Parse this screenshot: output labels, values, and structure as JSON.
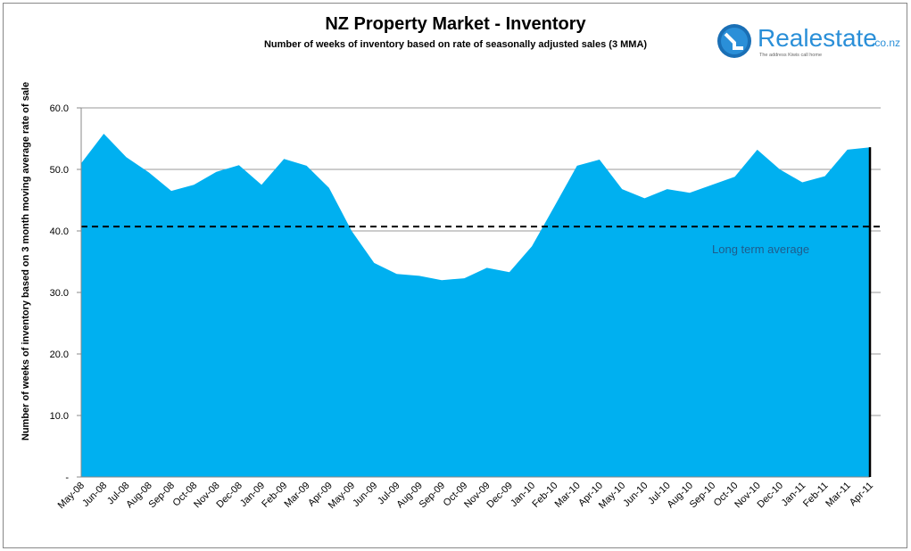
{
  "chart_data": {
    "type": "area",
    "title": "NZ Property Market - Inventory",
    "subtitle": "Number of weeks of inventory based on rate of seasonally  adjusted sales (3 MMA)",
    "ylabel": "Number of weeks of inventory based on 3 month moving average rate of sale",
    "xlabel": "",
    "ylim": [
      0,
      60
    ],
    "yticks": [
      "-",
      "10.0",
      "20.0",
      "30.0",
      "40.0",
      "50.0",
      "60.0"
    ],
    "grid": true,
    "categories": [
      "May-08",
      "Jun-08",
      "Jul-08",
      "Aug-08",
      "Sep-08",
      "Oct-08",
      "Nov-08",
      "Dec-08",
      "Jan-09",
      "Feb-09",
      "Mar-09",
      "Apr-09",
      "May-09",
      "Jun-09",
      "Jul-09",
      "Aug-09",
      "Sep-09",
      "Oct-09",
      "Nov-09",
      "Dec-09",
      "Jan-10",
      "Feb-10",
      "Mar-10",
      "Apr-10",
      "May-10",
      "Jun-10",
      "Jul-10",
      "Aug-10",
      "Sep-10",
      "Oct-10",
      "Nov-10",
      "Dec-10",
      "Jan-11",
      "Feb-11",
      "Mar-11",
      "Apr-11"
    ],
    "values": [
      51.0,
      55.8,
      52.0,
      49.5,
      46.5,
      47.5,
      49.6,
      50.7,
      47.5,
      51.7,
      50.6,
      47.0,
      40.0,
      34.8,
      33.0,
      32.7,
      32.0,
      32.3,
      34.0,
      33.3,
      37.5,
      44.0,
      50.6,
      51.6,
      46.8,
      45.3,
      46.8,
      46.2,
      47.5,
      48.8,
      53.2,
      50.0,
      47.9,
      48.9,
      53.2,
      53.6
    ],
    "reference_line": {
      "label": "Long term average",
      "value": 40.7
    },
    "colors": {
      "area": "#00b0f0",
      "reference": "#000000",
      "annotation": "#1f5c8c"
    }
  },
  "logo": {
    "name": "Realestate",
    "suffix": ".co.nz",
    "tagline": "The address Kiwis call home"
  }
}
